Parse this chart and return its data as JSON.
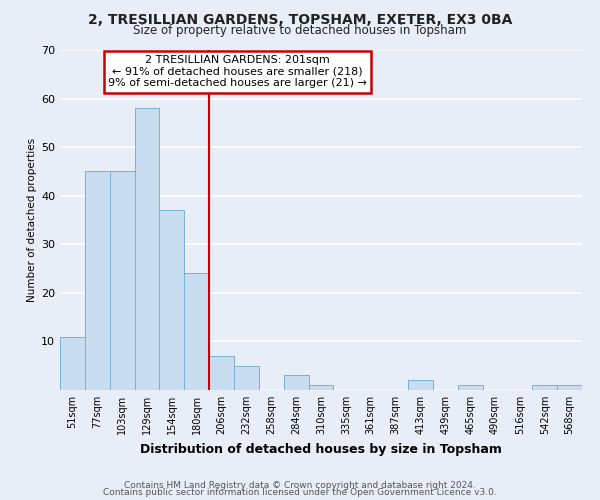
{
  "title": "2, TRESILLIAN GARDENS, TOPSHAM, EXETER, EX3 0BA",
  "subtitle": "Size of property relative to detached houses in Topsham",
  "xlabel": "Distribution of detached houses by size in Topsham",
  "ylabel": "Number of detached properties",
  "bar_labels": [
    "51sqm",
    "77sqm",
    "103sqm",
    "129sqm",
    "154sqm",
    "180sqm",
    "206sqm",
    "232sqm",
    "258sqm",
    "284sqm",
    "310sqm",
    "335sqm",
    "361sqm",
    "387sqm",
    "413sqm",
    "439sqm",
    "465sqm",
    "490sqm",
    "516sqm",
    "542sqm",
    "568sqm"
  ],
  "bar_values": [
    11,
    45,
    45,
    58,
    37,
    24,
    7,
    5,
    0,
    3,
    1,
    0,
    0,
    0,
    2,
    0,
    1,
    0,
    0,
    1,
    1
  ],
  "bar_color": "#c9ddf0",
  "bar_edge_color": "#7bafd4",
  "vline_x": 5.5,
  "vline_color": "#cc0000",
  "annotation_lines": [
    "2 TRESILLIAN GARDENS: 201sqm",
    "← 91% of detached houses are smaller (218)",
    "9% of semi-detached houses are larger (21) →"
  ],
  "annotation_box_color": "#ffffff",
  "annotation_box_edge": "#cc0000",
  "ylim": [
    0,
    70
  ],
  "yticks": [
    0,
    10,
    20,
    30,
    40,
    50,
    60,
    70
  ],
  "footer1": "Contains HM Land Registry data © Crown copyright and database right 2024.",
  "footer2": "Contains public sector information licensed under the Open Government Licence v3.0.",
  "background_color": "#e8eef8",
  "plot_bg_color": "#e8eef8",
  "grid_color": "#ffffff"
}
